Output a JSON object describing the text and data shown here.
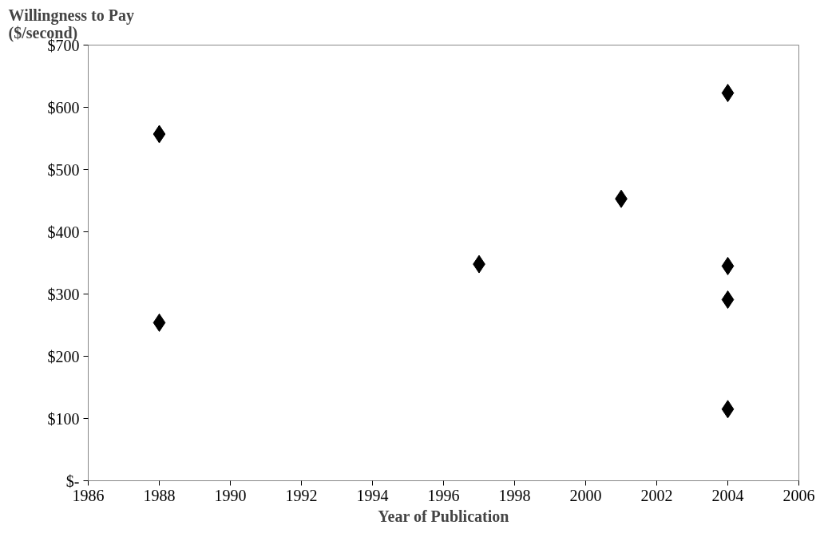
{
  "chart_data": {
    "type": "scatter",
    "ylabel": "Willingness to Pay\n($/second)",
    "xlabel": "Year of Publication",
    "x": [
      1988,
      1988,
      1997,
      2001,
      2004,
      2004,
      2004,
      2004
    ],
    "values": [
      557,
      254,
      348,
      453,
      623,
      345,
      291,
      115
    ],
    "color": "#000000",
    "marker": "diamond",
    "xlim": [
      1986,
      2006
    ],
    "xticks": [
      1986,
      1988,
      1990,
      1992,
      1994,
      1996,
      1998,
      2000,
      2002,
      2004,
      2006
    ],
    "ylim": [
      0,
      700
    ],
    "yticks": [
      {
        "value": 0,
        "label": "$-"
      },
      {
        "value": 100,
        "label": "$100"
      },
      {
        "value": 200,
        "label": "$200"
      },
      {
        "value": 300,
        "label": "$300"
      },
      {
        "value": 400,
        "label": "$400"
      },
      {
        "value": 500,
        "label": "$500"
      },
      {
        "value": 600,
        "label": "$600"
      },
      {
        "value": 700,
        "label": "$700"
      }
    ],
    "grid": false
  }
}
